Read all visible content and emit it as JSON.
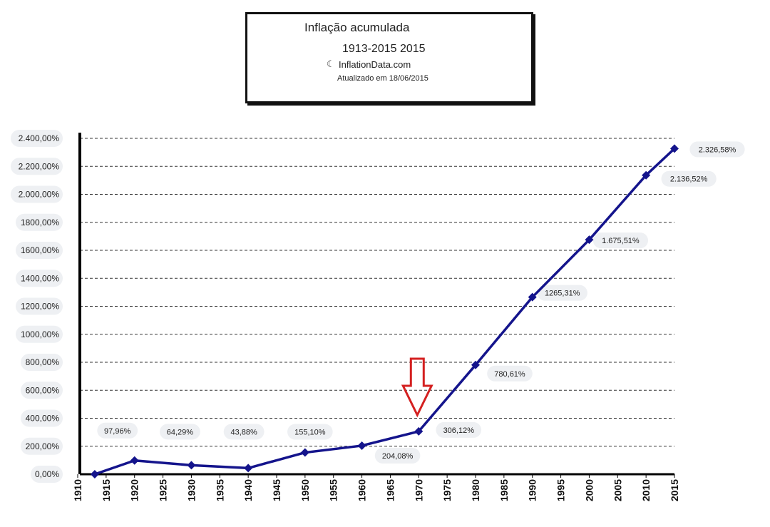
{
  "title_box": {
    "title": "Inflação acumulada",
    "period": "1913-2015 2015",
    "source": "InflationData.com",
    "updated": "Atualizado em 18/06/2015"
  },
  "chart_data": {
    "type": "line",
    "title": "Inflação acumulada",
    "subtitle": "1913-2015 2015",
    "xlabel": "",
    "ylabel": "",
    "xlim": [
      1910,
      2015
    ],
    "ylim": [
      0,
      2400
    ],
    "grid": true,
    "y_ticks": [
      {
        "value": 2400,
        "label": "2.400,00%"
      },
      {
        "value": 2200,
        "label": "2.200,00%"
      },
      {
        "value": 2000,
        "label": "2.000,00%"
      },
      {
        "value": 1800,
        "label": "1800,00%"
      },
      {
        "value": 1600,
        "label": "1600,00%"
      },
      {
        "value": 1400,
        "label": "1400,00%"
      },
      {
        "value": 1200,
        "label": "1200,00%"
      },
      {
        "value": 1000,
        "label": "1000,00%"
      },
      {
        "value": 800,
        "label": "800,00%"
      },
      {
        "value": 600,
        "label": "600,00%"
      },
      {
        "value": 400,
        "label": "400,00%"
      },
      {
        "value": 200,
        "label": "200,00%"
      },
      {
        "value": 0,
        "label": "0,00%"
      }
    ],
    "x_ticks": [
      "1910",
      "1915",
      "1920",
      "1925",
      "1930",
      "1935",
      "1940",
      "1945",
      "1950",
      "1955",
      "1960",
      "1965",
      "1970",
      "1975",
      "1980",
      "1985",
      "1990",
      "1995",
      "2000",
      "2005",
      "2010",
      "2015"
    ],
    "series": [
      {
        "color": "#14148c",
        "x": [
          1913,
          1920,
          1930,
          1940,
          1950,
          1960,
          1970,
          1980,
          1990,
          2000,
          2010,
          2015
        ],
        "y": [
          0,
          97.96,
          64.29,
          43.88,
          155.1,
          204.08,
          306.12,
          780.61,
          1265.31,
          1675.51,
          2136.52,
          2326.58
        ],
        "labels": [
          "",
          "97,96%",
          "64,29%",
          "43,88%",
          "155,10%",
          "204,08%",
          "306,12%",
          "780,61%",
          "1265,31%",
          "1.675,51%",
          "2.136,52%",
          "2.326,58%"
        ]
      }
    ],
    "annotation": {
      "type": "arrow-down",
      "x": 1970,
      "color": "#d42020"
    }
  }
}
